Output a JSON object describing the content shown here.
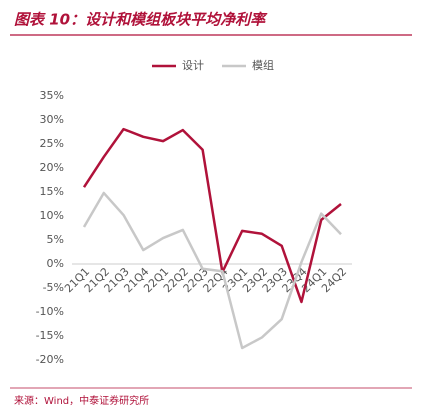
{
  "chart_data": {
    "type": "line",
    "title": "图表 10：设计和模组板块平均净利率",
    "source": "来源：Wind，中泰证券研究所",
    "categories": [
      "21Q1",
      "21Q2",
      "21Q3",
      "21Q4",
      "22Q1",
      "22Q2",
      "22Q3",
      "22Q4",
      "23Q1",
      "23Q2",
      "23Q3",
      "23Q4",
      "24Q1",
      "24Q2"
    ],
    "series": [
      {
        "name": "设计",
        "color": "#b0123a",
        "values": [
          16.0,
          22.3,
          28.1,
          26.5,
          25.6,
          27.9,
          23.8,
          -1.7,
          6.9,
          6.3,
          3.8,
          -7.9,
          9.2,
          12.5
        ]
      },
      {
        "name": "模组",
        "color": "#c8c8c8",
        "values": [
          7.7,
          14.8,
          10.2,
          2.9,
          5.4,
          7.1,
          -1.0,
          -1.5,
          -17.5,
          -15.3,
          -11.5,
          0.4,
          10.5,
          6.2
        ]
      }
    ],
    "ylim": [
      -20,
      35
    ],
    "yticks": [
      {
        "value": -20,
        "label": "-20%"
      },
      {
        "value": -15,
        "label": "-15%"
      },
      {
        "value": -10,
        "label": "-10%"
      },
      {
        "value": -5,
        "label": "-5%"
      },
      {
        "value": 0,
        "label": "0%"
      },
      {
        "value": 5,
        "label": "5%"
      },
      {
        "value": 10,
        "label": "10%"
      },
      {
        "value": 15,
        "label": "15%"
      },
      {
        "value": 20,
        "label": "20%"
      },
      {
        "value": 25,
        "label": "25%"
      },
      {
        "value": 30,
        "label": "30%"
      },
      {
        "value": 35,
        "label": "35%"
      }
    ],
    "legend": "top"
  }
}
